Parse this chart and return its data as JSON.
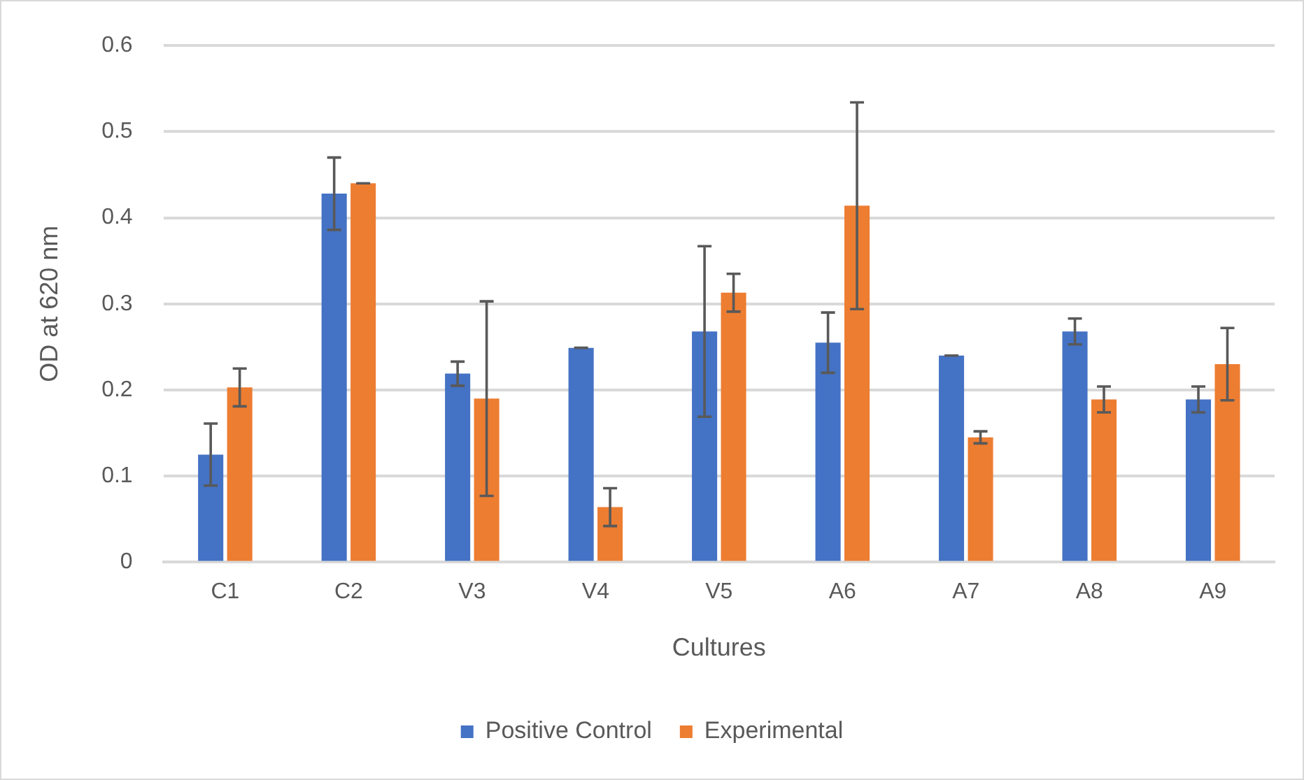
{
  "chart_data": {
    "type": "bar",
    "xlabel": "Cultures",
    "ylabel": "OD at 620 nm",
    "categories": [
      "C1",
      "C2",
      "V3",
      "V4",
      "V5",
      "A6",
      "A7",
      "A8",
      "A9"
    ],
    "series": [
      {
        "name": "Positive Control",
        "color": "#4472c4",
        "values": [
          0.125,
          0.428,
          0.219,
          0.249,
          0.268,
          0.255,
          0.24,
          0.268,
          0.189
        ],
        "errors": [
          0.036,
          0.042,
          0.014,
          0,
          0.099,
          0.035,
          0,
          0.015,
          0.015
        ]
      },
      {
        "name": "Experimental",
        "color": "#ed7d31",
        "values": [
          0.203,
          0.44,
          0.19,
          0.064,
          0.313,
          0.414,
          0.145,
          0.189,
          0.23
        ],
        "errors": [
          0.022,
          0,
          0.113,
          0.022,
          0.022,
          0.12,
          0.007,
          0.015,
          0.042
        ]
      }
    ],
    "ylim": [
      0,
      0.6
    ],
    "yticks": [
      0,
      0.1,
      0.2,
      0.3,
      0.4,
      0.5,
      0.6
    ],
    "grid": "y",
    "legend": "bottom"
  }
}
